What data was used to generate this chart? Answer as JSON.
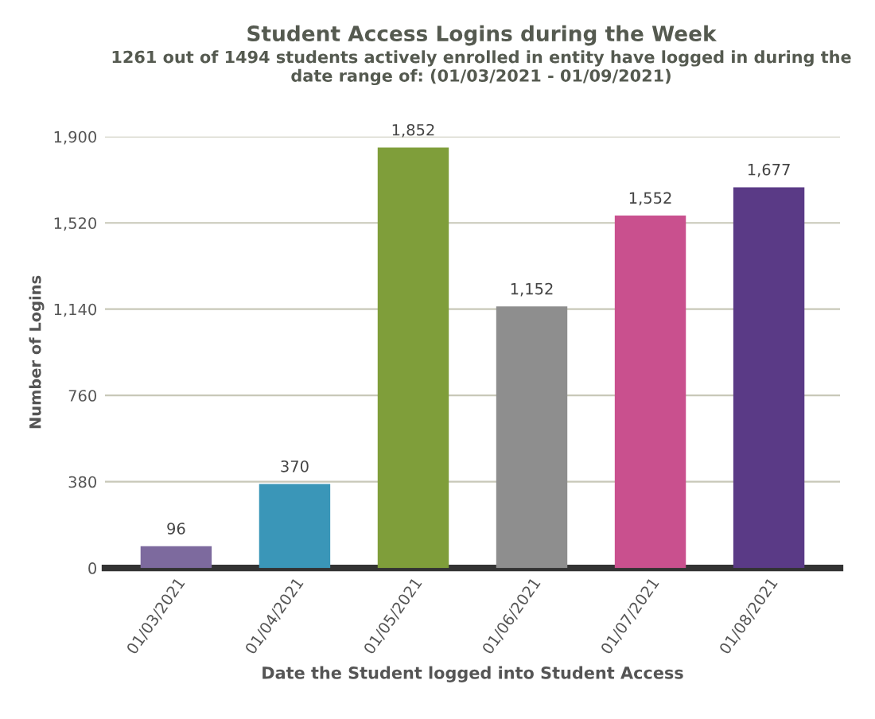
{
  "chart_data": {
    "type": "bar",
    "title": "Student Access Logins during the Week",
    "subtitle": "1261 out of 1494 students actively enrolled in entity have logged in during the\ndate range of: (01/03/2021 - 01/09/2021)",
    "xlabel": "Date the Student logged into Student Access",
    "ylabel": "Number of Logins",
    "categories": [
      "01/03/2021",
      "01/04/2021",
      "01/05/2021",
      "01/06/2021",
      "01/07/2021",
      "01/08/2021"
    ],
    "values": [
      96,
      370,
      1852,
      1152,
      1552,
      1677
    ],
    "colors": [
      "#7d6a9e",
      "#3a96b8",
      "#7f9e3a",
      "#8e8e8e",
      "#c9508e",
      "#5a3a86"
    ],
    "value_labels": [
      "96",
      "370",
      "1,852",
      "1,152",
      "1,552",
      "1,677"
    ],
    "ylim": [
      0,
      1900
    ],
    "yticks": [
      0,
      380,
      760,
      {
        "value": 1140,
        "label": "1,140"
      },
      {
        "value": 1520,
        "label": "1,520"
      },
      {
        "value": 1900,
        "label": "1,900"
      }
    ],
    "grid": "y"
  }
}
